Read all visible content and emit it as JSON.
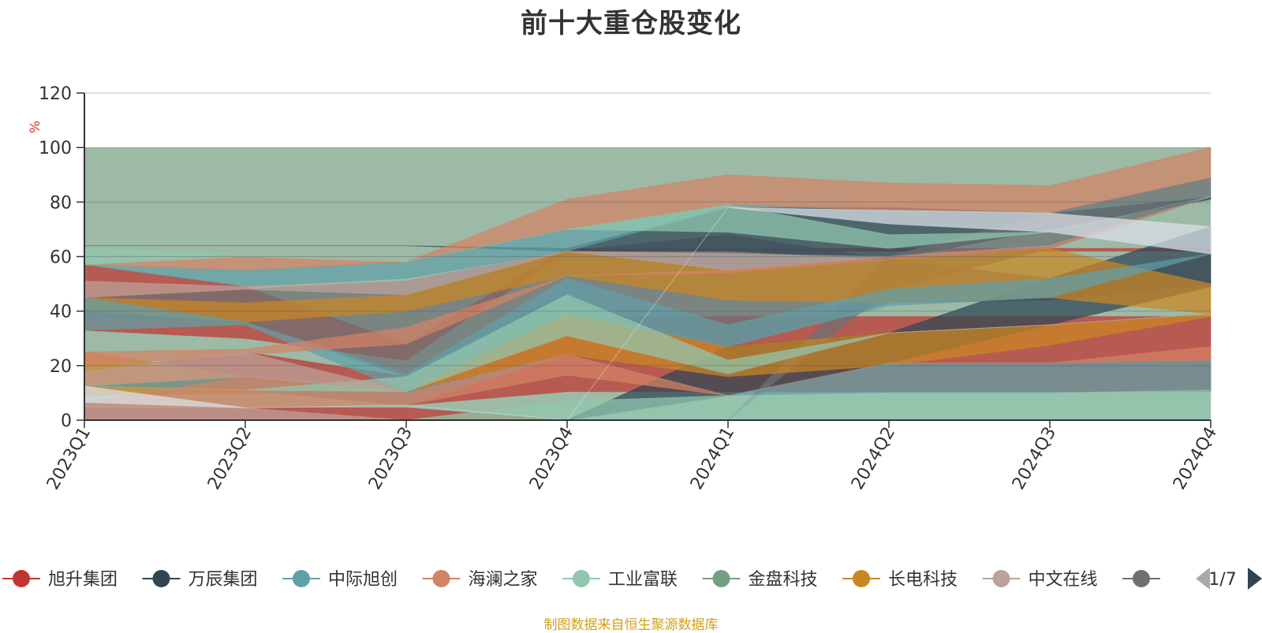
{
  "chart_data": {
    "type": "area",
    "stacked": true,
    "title": "前十大重仓股变化",
    "ylabel": "%",
    "ylim": [
      0,
      120
    ],
    "yticks": [
      0,
      20,
      40,
      60,
      80,
      100,
      120
    ],
    "categories": [
      "2023Q1",
      "2023Q2",
      "2023Q3",
      "2023Q4",
      "2024Q1",
      "2024Q2",
      "2024Q3",
      "2024Q4"
    ],
    "grid": true,
    "legend_position": "bottom",
    "legend_page": "1/7",
    "series": [
      {
        "name": "旭升集团",
        "color": "#c23531",
        "values": [
          6.5,
          4.5,
          4.5,
          0,
          0,
          0,
          0,
          0
        ]
      },
      {
        "name": "万辰集团",
        "color": "#2f4554",
        "values": [
          0,
          0,
          0,
          0,
          0,
          0,
          0,
          11
        ]
      },
      {
        "name": "中际旭创",
        "color": "#61a0a8",
        "values": [
          0,
          0,
          0,
          0,
          0,
          10,
          10,
          11
        ]
      },
      {
        "name": "海澜之家",
        "color": "#d48265",
        "values": [
          0,
          0,
          0,
          0,
          0,
          0,
          0,
          5
        ]
      },
      {
        "name": "工业富联",
        "color": "#91c7ae",
        "values": [
          0,
          0,
          0,
          7,
          9,
          0,
          0,
          0
        ]
      },
      {
        "name": "金盘科技",
        "color": "#749f83",
        "values": [
          0,
          0,
          0,
          0,
          0,
          11,
          11,
          12
        ]
      },
      {
        "name": "长电科技",
        "color": "#ca8622",
        "values": [
          0,
          0,
          0,
          0,
          0,
          0,
          11,
          0
        ]
      },
      {
        "name": "中文在线",
        "color": "#bda29a",
        "values": [
          0,
          0,
          0,
          0,
          0,
          0,
          0,
          0
        ]
      },
      {
        "name": "",
        "color": "#6e7074",
        "values": [
          0,
          0,
          0,
          9,
          0,
          11,
          0,
          0
        ]
      }
    ],
    "background_band": {
      "from": 0,
      "to": 100,
      "color": "#9cbaa6"
    },
    "decorative_bands": [
      {
        "color": "#c23531",
        "lower": [
          33,
          30,
          22,
          62,
          62,
          62,
          62,
          62
        ],
        "upper": [
          57,
          49,
          28,
          63,
          63,
          63,
          63,
          63
        ]
      },
      {
        "color": "#c23531",
        "lower": [
          12.5,
          11,
          5.5,
          10.5,
          10.5,
          10.5,
          10.5,
          10.5
        ],
        "upper": [
          18,
          25,
          16,
          38,
          38,
          38,
          38,
          38
        ]
      },
      {
        "color": "#c23531",
        "lower": [
          0,
          0,
          0,
          0,
          0,
          0,
          0,
          0
        ],
        "upper": [
          6.5,
          4.5,
          4.5,
          0,
          0,
          0,
          0,
          0
        ]
      },
      {
        "color": "#6e7074",
        "lower": [
          38,
          36,
          16,
          39,
          27,
          43,
          44,
          50
        ],
        "upper": [
          45,
          48,
          51,
          62,
          68,
          59,
          52,
          61
        ]
      },
      {
        "color": "#2f4554",
        "lower": [
          0,
          0,
          0,
          0,
          9,
          21,
          35,
          49
        ],
        "upper": [
          0,
          0,
          0,
          0,
          27,
          32,
          52,
          71
        ]
      },
      {
        "color": "#2f4554",
        "lower": [
          64,
          64,
          64,
          62,
          62,
          59,
          70,
          81
        ],
        "upper": [
          64,
          64,
          64,
          63,
          78,
          78,
          76,
          82
        ]
      },
      {
        "color": "#6e7074",
        "lower": [
          0,
          0,
          0,
          0,
          0,
          48,
          63,
          82
        ],
        "upper": [
          0,
          0,
          0,
          0,
          0,
          60,
          76,
          89
        ]
      },
      {
        "color": "#ca8622",
        "lower": [
          9,
          10,
          10.5,
          24,
          16,
          20,
          27.5,
          38
        ],
        "upper": [
          25,
          16,
          11,
          40,
          27,
          32,
          35,
          39
        ]
      },
      {
        "color": "#ca8622",
        "lower": [
          40,
          36,
          40,
          53,
          44,
          43,
          45,
          39
        ],
        "upper": [
          45,
          43,
          46,
          62,
          55,
          59,
          63,
          50
        ]
      },
      {
        "color": "#61a0a8",
        "lower": [
          33,
          35,
          10.5,
          39,
          27,
          42,
          45,
          61
        ],
        "upper": [
          45,
          36,
          17,
          52,
          35,
          48,
          52,
          61
        ]
      },
      {
        "color": "#61a0a8",
        "lower": [
          12.5,
          11,
          5.5,
          24,
          9,
          10,
          10,
          11
        ],
        "upper": [
          12.5,
          16,
          10.5,
          24,
          9,
          21,
          21,
          22
        ]
      },
      {
        "color": "#61a0a8",
        "lower": [
          57,
          49,
          52,
          62,
          78,
          78,
          76,
          82
        ],
        "upper": [
          57,
          55,
          58,
          70,
          79,
          78,
          76,
          82
        ]
      },
      {
        "color": "#d48265",
        "lower": [
          20,
          24,
          28,
          53,
          54,
          59,
          63,
          82
        ],
        "upper": [
          25,
          26,
          34,
          53,
          55,
          60,
          64,
          82
        ]
      },
      {
        "color": "#d48265",
        "lower": [
          4.5,
          4.5,
          5.5,
          16.5,
          9,
          21,
          21,
          22
        ],
        "upper": [
          6.5,
          16,
          10,
          24,
          9,
          21,
          21,
          27
        ]
      },
      {
        "color": "#d48265",
        "lower": [
          57,
          55,
          58,
          70,
          79,
          77,
          76,
          89
        ],
        "upper": [
          57,
          61,
          58,
          81,
          90,
          87,
          86,
          100
        ]
      },
      {
        "color": "#91c7ae",
        "lower": [
          57,
          60,
          58,
          70,
          69,
          63,
          69,
          82
        ],
        "upper": [
          63,
          61,
          58,
          70,
          79,
          68,
          69,
          82
        ]
      },
      {
        "color": "#91c7ae",
        "lower": [
          0,
          0,
          0,
          0,
          0,
          0,
          0,
          0
        ],
        "upper": [
          0,
          0,
          0,
          7,
          9,
          10,
          10,
          11
        ]
      },
      {
        "color": "#91c7ae",
        "lower": [
          12.5,
          11,
          10.5,
          31,
          17,
          32,
          35,
          39
        ],
        "upper": [
          12.5,
          11,
          16,
          46,
          22,
          32,
          35,
          39
        ]
      },
      {
        "color": "#bda29a",
        "lower": [
          0,
          0,
          0,
          0,
          0,
          0,
          0,
          0
        ],
        "upper": [
          6.5,
          4.5,
          0,
          0,
          0,
          0,
          0,
          0
        ]
      },
      {
        "color": "#bda29a",
        "lower": [
          12.5,
          16,
          10.5,
          31,
          17,
          32,
          35,
          39
        ],
        "upper": [
          18,
          25,
          10.5,
          31,
          17,
          32,
          35,
          39
        ]
      },
      {
        "color": "#bda29a",
        "lower": [
          45,
          48,
          46,
          62,
          55,
          60,
          64,
          82
        ],
        "upper": [
          51,
          49,
          51,
          62,
          61,
          60,
          64,
          82
        ]
      },
      {
        "color": "#dde1e8",
        "lower": [
          6.5,
          4.5,
          5.5,
          0,
          0,
          0,
          0,
          0
        ],
        "upper": [
          12.5,
          4.5,
          5.5,
          0,
          0,
          0,
          0,
          0
        ]
      },
      {
        "color": "#dde1e8",
        "lower": [
          0,
          0,
          0,
          0,
          78,
          72,
          69,
          61
        ],
        "upper": [
          0,
          0,
          0,
          0,
          78,
          77,
          76,
          71
        ]
      }
    ]
  },
  "source_note": "制图数据来自恒生聚源数据库"
}
